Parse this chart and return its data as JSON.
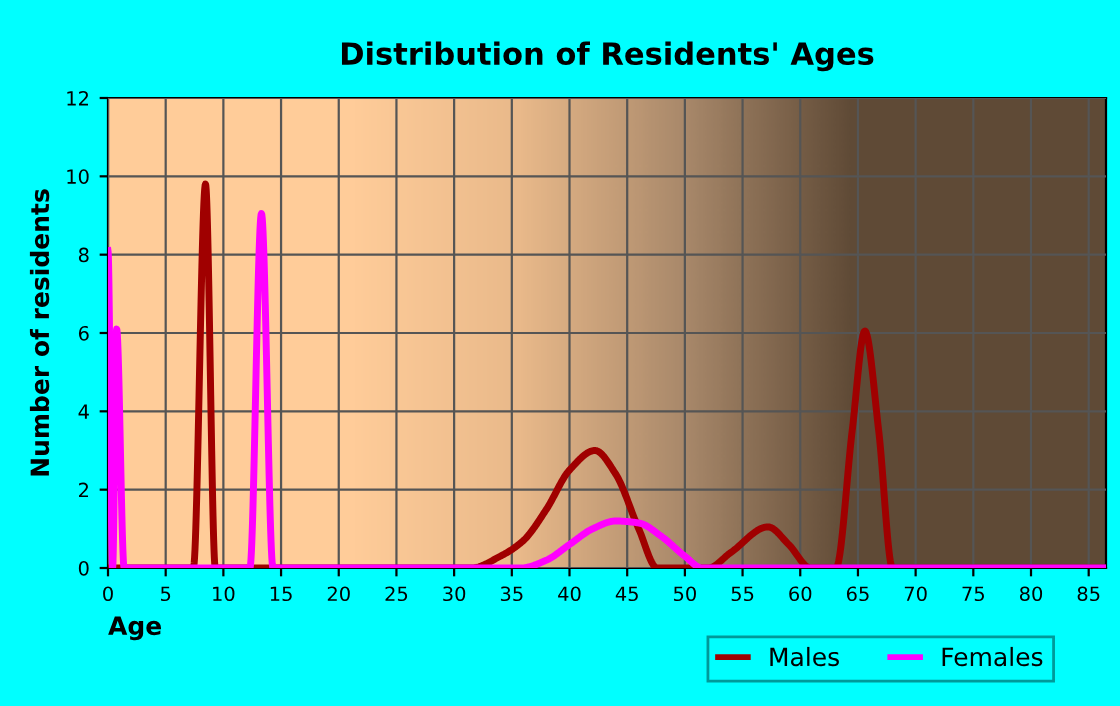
{
  "chart_data": {
    "type": "line",
    "title": "Distribution of Residents' Ages",
    "xlabel": "Age",
    "ylabel": "Number of residents",
    "xlim": [
      0,
      86.5
    ],
    "xticks": [
      0,
      5,
      10,
      15,
      20,
      25,
      30,
      35,
      40,
      45,
      50,
      55,
      60,
      65,
      70,
      75,
      80,
      85
    ],
    "ylim": [
      0,
      12
    ],
    "yticks": [
      0,
      2,
      4,
      6,
      8,
      10,
      12
    ],
    "grid": true,
    "legend": "bottom right",
    "series": [
      {
        "name": "Males",
        "color": "#a00000",
        "x": [
          0,
          7.4,
          8.45,
          9.3,
          31.5,
          34,
          36,
          38,
          40,
          42.2,
          44,
          46,
          47.6,
          52,
          54,
          57.2,
          59,
          60.9,
          63.1,
          64.5,
          65.6,
          66.8,
          68,
          86.5
        ],
        "values": [
          0,
          0,
          9.8,
          0,
          0,
          0.3,
          0.7,
          1.5,
          2.5,
          3.0,
          2.4,
          1.0,
          0,
          0,
          0.4,
          1.05,
          0.6,
          0,
          0,
          3.5,
          6.05,
          3.5,
          0,
          0
        ]
      },
      {
        "name": "Females",
        "color": "#ff00ff",
        "x": [
          0,
          0.4,
          0.75,
          1.4,
          12.3,
          13.3,
          14.3,
          35.8,
          38,
          40,
          42,
          44,
          46,
          48,
          50,
          51.5,
          86.5
        ],
        "values": [
          8.1,
          0,
          6.1,
          0,
          0,
          9.05,
          0,
          0,
          0.2,
          0.6,
          1.0,
          1.2,
          1.15,
          0.8,
          0.3,
          0,
          0
        ]
      }
    ]
  }
}
